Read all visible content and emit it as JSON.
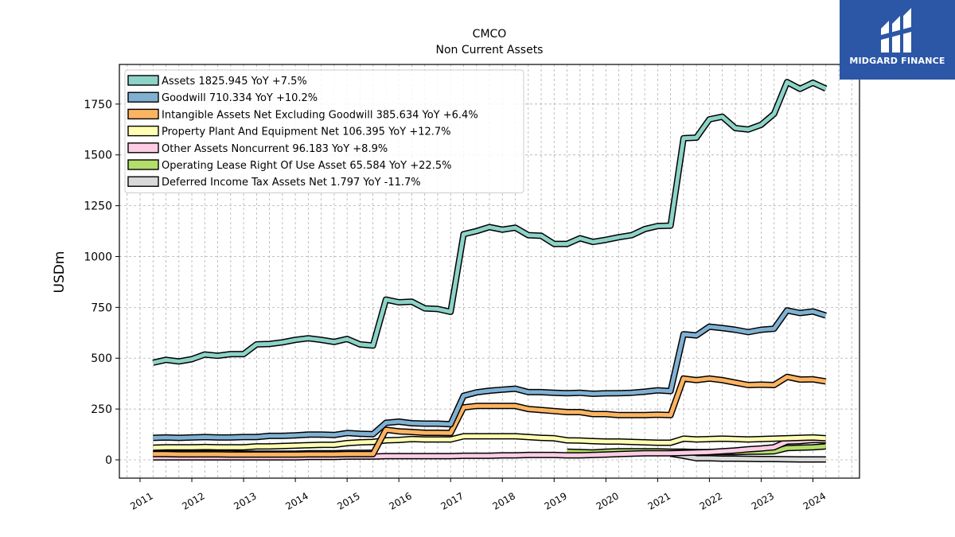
{
  "chart_data": {
    "type": "line",
    "title": "CMCO",
    "subtitle": "Non Current  Assets",
    "ylabel": "USDm",
    "xlabel": "",
    "xlim": [
      2010.6,
      2024.9
    ],
    "ylim": [
      -90,
      1945
    ],
    "yticks": [
      0,
      250,
      500,
      750,
      1000,
      1250,
      1500,
      1750
    ],
    "xticks": [
      "2011",
      "2012",
      "2013",
      "2014",
      "2015",
      "2016",
      "2017",
      "2018",
      "2019",
      "2020",
      "2021",
      "2022",
      "2023",
      "2024"
    ],
    "grid": true,
    "legend_position": "top-left",
    "x": [
      2011.25,
      2011.5,
      2011.75,
      2012.0,
      2012.25,
      2012.5,
      2012.75,
      2013.0,
      2013.25,
      2013.5,
      2013.75,
      2014.0,
      2014.25,
      2014.5,
      2014.75,
      2015.0,
      2015.25,
      2015.5,
      2015.75,
      2016.0,
      2016.25,
      2016.5,
      2016.75,
      2017.0,
      2017.25,
      2017.5,
      2017.75,
      2018.0,
      2018.25,
      2018.5,
      2018.75,
      2019.0,
      2019.25,
      2019.5,
      2019.75,
      2020.0,
      2020.25,
      2020.5,
      2020.75,
      2021.0,
      2021.25,
      2021.5,
      2021.75,
      2022.0,
      2022.25,
      2022.5,
      2022.75,
      2023.0,
      2023.25,
      2023.5,
      2023.75,
      2024.0,
      2024.25
    ],
    "series": [
      {
        "name": "Assets",
        "legend": "Assets  1825.945 YoY +7.5%",
        "color": "#8dd3c7",
        "values": [
          478,
          492,
          484,
          495,
          518,
          512,
          520,
          520,
          568,
          570,
          578,
          590,
          598,
          590,
          580,
          595,
          568,
          562,
          788,
          775,
          778,
          745,
          742,
          728,
          1110,
          1125,
          1145,
          1132,
          1142,
          1105,
          1102,
          1062,
          1062,
          1090,
          1072,
          1082,
          1095,
          1105,
          1135,
          1150,
          1152,
          1582,
          1585,
          1675,
          1688,
          1632,
          1625,
          1648,
          1702,
          1858,
          1825,
          1855,
          1826
        ]
      },
      {
        "name": "Goodwill",
        "legend": "Goodwill  710.334 YoY +10.2%",
        "color": "#80b1d3",
        "values": [
          108,
          110,
          108,
          110,
          112,
          110,
          110,
          112,
          112,
          118,
          118,
          120,
          124,
          124,
          122,
          132,
          128,
          126,
          182,
          188,
          180,
          178,
          178,
          175,
          315,
          332,
          340,
          345,
          350,
          333,
          333,
          330,
          328,
          330,
          325,
          327,
          328,
          330,
          335,
          342,
          338,
          618,
          612,
          655,
          648,
          640,
          628,
          640,
          645,
          735,
          722,
          730,
          710
        ]
      },
      {
        "name": "Intangible Assets Net Excluding Goodwill",
        "legend": "Intangible Assets Net Excluding Goodwill  385.634 YoY +6.4%",
        "color": "#fdb462",
        "values": [
          28,
          28,
          27,
          27,
          27,
          27,
          26,
          26,
          26,
          26,
          26,
          26,
          27,
          27,
          27,
          28,
          28,
          28,
          148,
          140,
          137,
          133,
          133,
          132,
          258,
          265,
          265,
          265,
          265,
          250,
          245,
          240,
          235,
          235,
          225,
          225,
          220,
          220,
          220,
          222,
          220,
          400,
          392,
          400,
          392,
          380,
          368,
          370,
          368,
          408,
          395,
          396,
          386
        ]
      },
      {
        "name": "Property Plant And Equipment Net",
        "legend": "Property Plant And Equipment Net  106.395 YoY +12.7%",
        "color": "#ffffb3",
        "values": [
          60,
          62,
          62,
          62,
          63,
          62,
          62,
          62,
          66,
          66,
          68,
          70,
          72,
          74,
          74,
          82,
          86,
          88,
          96,
          98,
          102,
          100,
          100,
          100,
          116,
          116,
          116,
          116,
          116,
          112,
          108,
          106,
          96,
          95,
          92,
          90,
          90,
          88,
          86,
          84,
          84,
          104,
          100,
          102,
          104,
          102,
          100,
          102,
          104,
          106,
          108,
          110,
          106
        ]
      },
      {
        "name": "Other Assets Noncurrent",
        "legend": "Other Assets Noncurrent  96.183 YoY +8.9%",
        "color": "#fccde5",
        "values": [
          12,
          12,
          12,
          12,
          12,
          12,
          12,
          12,
          12,
          12,
          12,
          12,
          14,
          14,
          14,
          16,
          16,
          16,
          18,
          18,
          18,
          18,
          18,
          18,
          20,
          20,
          20,
          22,
          22,
          24,
          24,
          24,
          22,
          22,
          24,
          26,
          28,
          30,
          32,
          32,
          32,
          34,
          36,
          38,
          42,
          46,
          52,
          56,
          62,
          90,
          92,
          98,
          96
        ]
      },
      {
        "name": "Operating Lease Right Of Use Asset",
        "legend": "Operating Lease Right Of Use Asset  65.584 YoY +22.5%",
        "color": "#b3de69",
        "values": [
          null,
          null,
          null,
          null,
          null,
          null,
          null,
          null,
          null,
          null,
          null,
          null,
          null,
          null,
          null,
          null,
          null,
          null,
          null,
          null,
          null,
          null,
          null,
          null,
          null,
          null,
          null,
          null,
          null,
          null,
          null,
          null,
          40,
          38,
          36,
          40,
          42,
          42,
          42,
          42,
          40,
          40,
          38,
          38,
          38,
          38,
          40,
          40,
          42,
          58,
          60,
          62,
          66
        ]
      },
      {
        "name": "Deferred Income Tax Assets Net",
        "legend": "Deferred Income Tax Assets Net  1.797 YoY -11.7%",
        "color": "#d9d9d9",
        "values": [
          null,
          null,
          null,
          null,
          null,
          null,
          null,
          null,
          null,
          null,
          null,
          null,
          null,
          null,
          null,
          null,
          null,
          null,
          null,
          null,
          null,
          null,
          null,
          null,
          null,
          null,
          null,
          null,
          null,
          null,
          null,
          null,
          null,
          null,
          null,
          null,
          null,
          null,
          null,
          null,
          30,
          20,
          8,
          8,
          6,
          6,
          5,
          4,
          4,
          3,
          2,
          2,
          2
        ]
      },
      {
        "name": "",
        "legend": "",
        "color": "#fccde5",
        "hidden_in_legend": true,
        "values": [
          32,
          32,
          32,
          32,
          32,
          32,
          32,
          30,
          30,
          30,
          30,
          30,
          32,
          32,
          32,
          34,
          34,
          35,
          null,
          null,
          null,
          null,
          null,
          null,
          null,
          null,
          null,
          null,
          null,
          null,
          null,
          null,
          null,
          null,
          null,
          null,
          null,
          null,
          null,
          null,
          null,
          null,
          null,
          null,
          null,
          null,
          null,
          null,
          null,
          null,
          null,
          null,
          null
        ]
      }
    ]
  },
  "logo": {
    "text": "MIDGARD FINANCE",
    "bg_color": "#2c56a6"
  }
}
